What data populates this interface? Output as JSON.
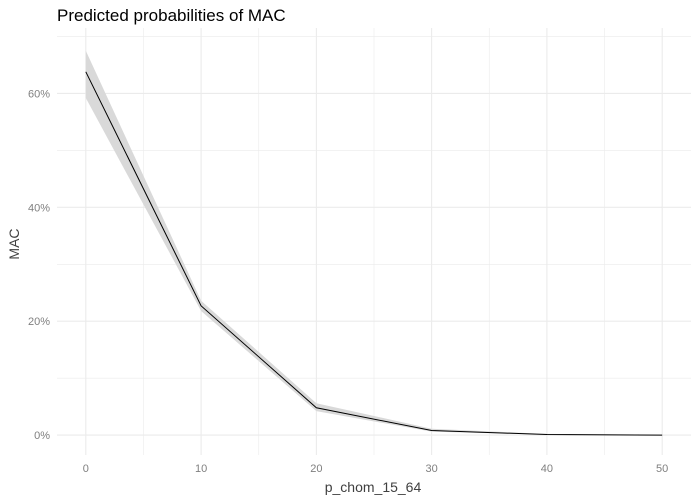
{
  "chart_data": {
    "type": "line",
    "title": "Predicted probabilities of MAC",
    "xlabel": "p_chom_15_64",
    "ylabel": "MAC",
    "xlim": [
      -2.5,
      52.5
    ],
    "ylim": [
      -0.035,
      0.715
    ],
    "x_ticks": [
      0,
      10,
      20,
      30,
      40,
      50
    ],
    "x_tick_labels": [
      "0",
      "10",
      "20",
      "30",
      "40",
      "50"
    ],
    "y_ticks": [
      0,
      0.2,
      0.4,
      0.6
    ],
    "y_tick_labels": [
      "0%",
      "20%",
      "40%",
      "60%"
    ],
    "grid": true,
    "series": [
      {
        "x": [
          0,
          10,
          20,
          30,
          40,
          50
        ],
        "values": [
          0.638,
          0.227,
          0.048,
          0.008,
          0.001,
          0.0
        ],
        "ci_low": [
          0.592,
          0.218,
          0.042,
          0.006,
          0.0005,
          0.0
        ],
        "ci_high": [
          0.675,
          0.236,
          0.056,
          0.011,
          0.002,
          0.0005
        ]
      }
    ],
    "colors": {
      "line": "#000000",
      "ribbon": "#d9d9d9",
      "grid": "#ebebeb"
    }
  }
}
